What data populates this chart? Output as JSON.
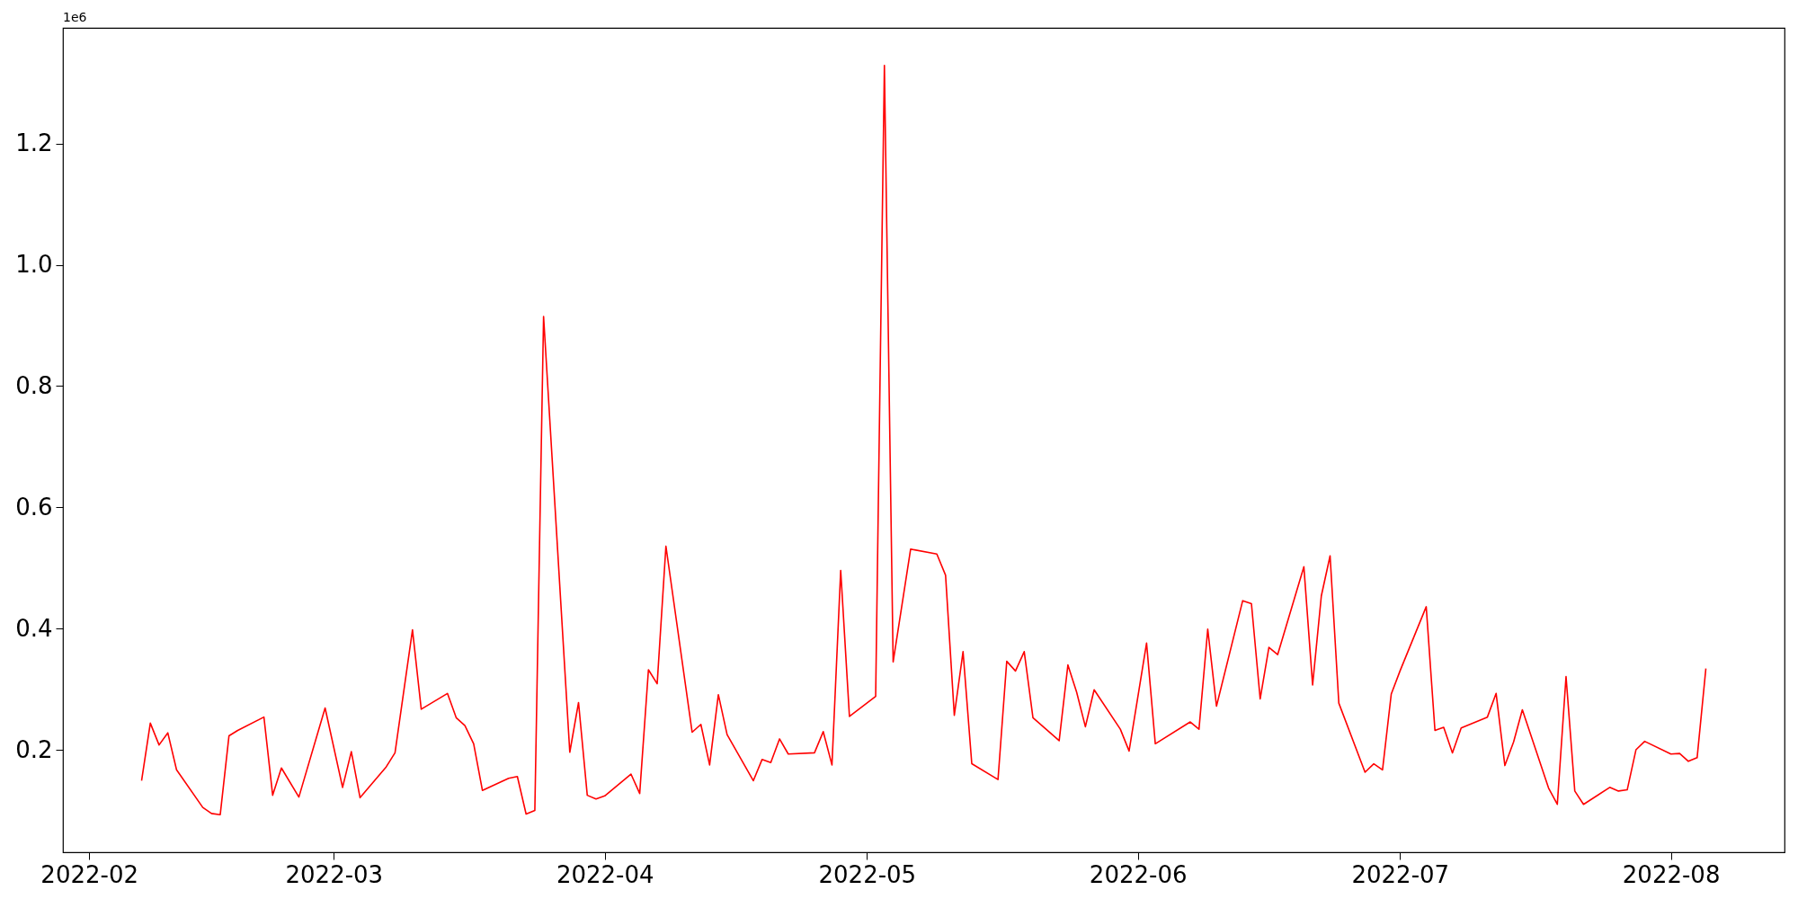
{
  "chart_data": {
    "type": "line",
    "annotations": [
      "1e6"
    ],
    "x": [
      "2022-02-07",
      "2022-02-08",
      "2022-02-09",
      "2022-02-10",
      "2022-02-11",
      "2022-02-14",
      "2022-02-15",
      "2022-02-16",
      "2022-02-17",
      "2022-02-18",
      "2022-02-21",
      "2022-02-22",
      "2022-02-23",
      "2022-02-25",
      "2022-02-28",
      "2022-03-02",
      "2022-03-03",
      "2022-03-04",
      "2022-03-07",
      "2022-03-08",
      "2022-03-10",
      "2022-03-11",
      "2022-03-14",
      "2022-03-15",
      "2022-03-16",
      "2022-03-17",
      "2022-03-18",
      "2022-03-21",
      "2022-03-22",
      "2022-03-23",
      "2022-03-24",
      "2022-03-25",
      "2022-03-28",
      "2022-03-29",
      "2022-03-30",
      "2022-03-31",
      "2022-04-01",
      "2022-04-04",
      "2022-04-05",
      "2022-04-06",
      "2022-04-07",
      "2022-04-08",
      "2022-04-11",
      "2022-04-12",
      "2022-04-13",
      "2022-04-14",
      "2022-04-15",
      "2022-04-18",
      "2022-04-19",
      "2022-04-20",
      "2022-04-21",
      "2022-04-22",
      "2022-04-25",
      "2022-04-26",
      "2022-04-27",
      "2022-04-28",
      "2022-04-29",
      "2022-05-02",
      "2022-05-03",
      "2022-05-04",
      "2022-05-06",
      "2022-05-09",
      "2022-05-10",
      "2022-05-11",
      "2022-05-12",
      "2022-05-13",
      "2022-05-16",
      "2022-05-17",
      "2022-05-18",
      "2022-05-19",
      "2022-05-20",
      "2022-05-23",
      "2022-05-24",
      "2022-05-25",
      "2022-05-26",
      "2022-05-27",
      "2022-05-30",
      "2022-05-31",
      "2022-06-02",
      "2022-06-03",
      "2022-06-07",
      "2022-06-08",
      "2022-06-09",
      "2022-06-10",
      "2022-06-13",
      "2022-06-14",
      "2022-06-15",
      "2022-06-16",
      "2022-06-17",
      "2022-06-20",
      "2022-06-21",
      "2022-06-22",
      "2022-06-23",
      "2022-06-24",
      "2022-06-27",
      "2022-06-28",
      "2022-06-29",
      "2022-06-30",
      "2022-07-01",
      "2022-07-04",
      "2022-07-05",
      "2022-07-06",
      "2022-07-07",
      "2022-07-08",
      "2022-07-11",
      "2022-07-12",
      "2022-07-13",
      "2022-07-14",
      "2022-07-15",
      "2022-07-18",
      "2022-07-19",
      "2022-07-20",
      "2022-07-21",
      "2022-07-22",
      "2022-07-25",
      "2022-07-26",
      "2022-07-27",
      "2022-07-28",
      "2022-07-29",
      "2022-08-01",
      "2022-08-02",
      "2022-08-03",
      "2022-08-04",
      "2022-08-05"
    ],
    "series": [
      {
        "color": "#ff0000",
        "values": [
          0.149,
          0.244,
          0.208,
          0.228,
          0.167,
          0.105,
          0.095,
          0.093,
          0.223,
          0.232,
          0.254,
          0.125,
          0.17,
          0.122,
          0.269,
          0.138,
          0.197,
          0.121,
          0.172,
          0.195,
          0.398,
          0.267,
          0.293,
          0.253,
          0.24,
          0.21,
          0.133,
          0.153,
          0.156,
          0.094,
          0.1,
          0.915,
          0.196,
          0.278,
          0.125,
          0.119,
          0.124,
          0.16,
          0.128,
          0.332,
          0.309,
          0.536,
          0.229,
          0.242,
          0.175,
          0.291,
          0.225,
          0.149,
          0.184,
          0.179,
          0.218,
          0.193,
          0.195,
          0.23,
          0.175,
          0.496,
          0.255,
          0.288,
          1.329,
          0.345,
          0.531,
          0.523,
          0.488,
          0.257,
          0.362,
          0.177,
          0.151,
          0.346,
          0.33,
          0.362,
          0.253,
          0.215,
          0.34,
          0.295,
          0.238,
          0.299,
          0.234,
          0.198,
          0.376,
          0.21,
          0.246,
          0.234,
          0.399,
          0.272,
          0.446,
          0.441,
          0.284,
          0.369,
          0.357,
          0.502,
          0.307,
          0.454,
          0.52,
          0.277,
          0.163,
          0.177,
          0.167,
          0.292,
          0.33,
          0.436,
          0.232,
          0.237,
          0.195,
          0.236,
          0.254,
          0.293,
          0.174,
          0.213,
          0.266,
          0.137,
          0.11,
          0.321,
          0.132,
          0.11,
          0.138,
          0.132,
          0.134,
          0.2,
          0.214,
          0.193,
          0.194,
          0.181,
          0.187,
          0.334
        ]
      }
    ],
    "xlim": [
      "2022-01-29",
      "2022-08-14"
    ],
    "xticks": [
      {
        "value": "2022-02-01",
        "label": "2022-02"
      },
      {
        "value": "2022-03-01",
        "label": "2022-03"
      },
      {
        "value": "2022-04-01",
        "label": "2022-04"
      },
      {
        "value": "2022-05-01",
        "label": "2022-05"
      },
      {
        "value": "2022-06-01",
        "label": "2022-06"
      },
      {
        "value": "2022-07-01",
        "label": "2022-07"
      },
      {
        "value": "2022-08-01",
        "label": "2022-08"
      }
    ],
    "ylim": [
      0.031,
      1.391
    ],
    "yticks": [
      0.2,
      0.4,
      0.6,
      0.8,
      {
        "value": 1,
        "label": "1.0"
      },
      1.2
    ],
    "grid": false,
    "marker": "none",
    "line_style": "solid"
  }
}
